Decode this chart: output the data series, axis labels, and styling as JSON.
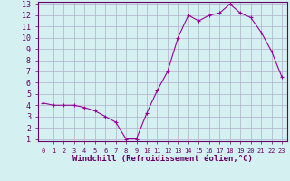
{
  "x": [
    0,
    1,
    2,
    3,
    4,
    5,
    6,
    7,
    8,
    9,
    10,
    11,
    12,
    13,
    14,
    15,
    16,
    17,
    18,
    19,
    20,
    21,
    22,
    23
  ],
  "y": [
    4.2,
    4.0,
    4.0,
    4.0,
    3.8,
    3.5,
    3.0,
    2.5,
    1.0,
    1.0,
    3.3,
    5.3,
    7.0,
    10.0,
    12.0,
    11.5,
    12.0,
    12.2,
    13.0,
    12.2,
    11.8,
    10.5,
    8.8,
    6.5
  ],
  "line_color": "#990099",
  "marker": "+",
  "marker_size": 3,
  "marker_lw": 0.8,
  "bg_color": "#d4f0f0",
  "grid_color": "#b0b0cc",
  "xlabel": "Windchill (Refroidissement éolien,°C)",
  "xlabel_color": "#660066",
  "xlabel_fontsize": 6.5,
  "tick_color": "#660066",
  "ytick_fontsize": 6,
  "xtick_fontsize": 5,
  "ylim": [
    1,
    13
  ],
  "xlim": [
    -0.5,
    23.5
  ],
  "yticks": [
    1,
    2,
    3,
    4,
    5,
    6,
    7,
    8,
    9,
    10,
    11,
    12,
    13
  ],
  "xticks": [
    0,
    1,
    2,
    3,
    4,
    5,
    6,
    7,
    8,
    9,
    10,
    11,
    12,
    13,
    14,
    15,
    16,
    17,
    18,
    19,
    20,
    21,
    22,
    23
  ]
}
